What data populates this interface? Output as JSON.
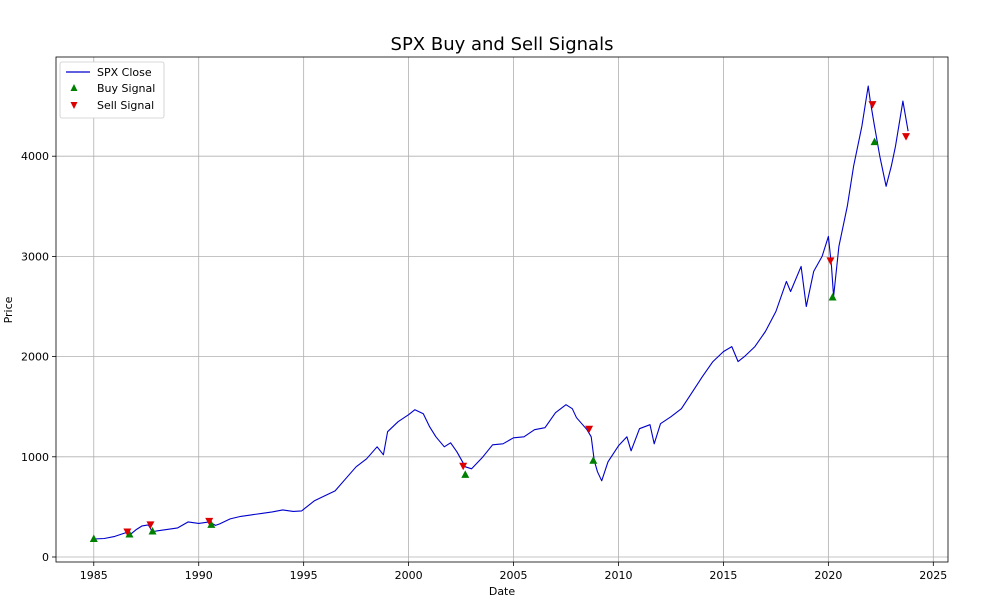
{
  "chart_data": {
    "type": "line",
    "title": "SPX Buy and Sell Signals",
    "xlabel": "Date",
    "ylabel": "Price",
    "xlim": [
      1983.2,
      2025.7
    ],
    "ylim": [
      -50,
      4990
    ],
    "x_ticks": [
      1985,
      1990,
      1995,
      2000,
      2005,
      2010,
      2015,
      2020,
      2025
    ],
    "y_ticks": [
      0,
      1000,
      2000,
      3000,
      4000
    ],
    "grid": true,
    "legend_position": "top-left",
    "series": [
      {
        "name": "SPX Close",
        "kind": "line",
        "color": "#0000cc",
        "x": [
          1985.0,
          1985.5,
          1986.0,
          1986.5,
          1986.8,
          1987.0,
          1987.3,
          1987.6,
          1987.8,
          1988.0,
          1988.5,
          1989.0,
          1989.5,
          1990.0,
          1990.5,
          1990.8,
          1991.0,
          1991.5,
          1992.0,
          1992.5,
          1993.0,
          1993.5,
          1994.0,
          1994.5,
          1994.9,
          1995.5,
          1996.0,
          1996.5,
          1997.0,
          1997.5,
          1998.0,
          1998.5,
          1998.8,
          1999.0,
          1999.5,
          2000.0,
          2000.3,
          2000.7,
          2001.0,
          2001.3,
          2001.7,
          2002.0,
          2002.3,
          2002.7,
          2003.0,
          2003.5,
          2004.0,
          2004.5,
          2005.0,
          2005.5,
          2006.0,
          2006.5,
          2007.0,
          2007.5,
          2007.8,
          2008.0,
          2008.5,
          2008.7,
          2008.85,
          2009.0,
          2009.2,
          2009.5,
          2010.0,
          2010.4,
          2010.6,
          2011.0,
          2011.5,
          2011.7,
          2012.0,
          2012.5,
          2013.0,
          2013.5,
          2014.0,
          2014.5,
          2015.0,
          2015.4,
          2015.7,
          2016.0,
          2016.5,
          2017.0,
          2017.5,
          2018.0,
          2018.2,
          2018.7,
          2018.95,
          2019.3,
          2019.7,
          2020.0,
          2020.15,
          2020.25,
          2020.5,
          2020.9,
          2021.2,
          2021.6,
          2021.9,
          2022.0,
          2022.2,
          2022.45,
          2022.75,
          2023.0,
          2023.2,
          2023.55,
          2023.8
        ],
        "y": [
          180,
          185,
          205,
          240,
          235,
          270,
          310,
          320,
          250,
          260,
          275,
          290,
          350,
          335,
          350,
          315,
          330,
          380,
          405,
          420,
          435,
          450,
          470,
          455,
          460,
          560,
          610,
          660,
          780,
          900,
          980,
          1100,
          1020,
          1250,
          1350,
          1420,
          1470,
          1430,
          1300,
          1200,
          1100,
          1140,
          1050,
          900,
          880,
          990,
          1120,
          1130,
          1190,
          1200,
          1270,
          1290,
          1440,
          1520,
          1480,
          1390,
          1270,
          1200,
          960,
          850,
          760,
          950,
          1110,
          1200,
          1060,
          1280,
          1320,
          1130,
          1330,
          1400,
          1480,
          1640,
          1800,
          1950,
          2050,
          2100,
          1950,
          2000,
          2100,
          2250,
          2450,
          2750,
          2650,
          2900,
          2500,
          2850,
          3000,
          3200,
          2900,
          2600,
          3100,
          3500,
          3900,
          4300,
          4700,
          4550,
          4300,
          4000,
          3700,
          3900,
          4100,
          4550,
          4250
        ]
      },
      {
        "name": "Buy Signal",
        "kind": "marker",
        "marker": "triangle-up",
        "color": "#008000",
        "x": [
          1985.0,
          1986.7,
          1987.8,
          1990.6,
          2002.7,
          2008.8,
          2020.2,
          2022.2
        ],
        "y": [
          180,
          225,
          255,
          320,
          820,
          960,
          2590,
          4140
        ]
      },
      {
        "name": "Sell Signal",
        "kind": "marker",
        "marker": "triangle-down",
        "color": "#dd0000",
        "x": [
          1986.6,
          1987.7,
          1990.5,
          2002.6,
          2008.6,
          2020.1,
          2022.1,
          2023.7
        ],
        "y": [
          255,
          325,
          360,
          910,
          1280,
          2960,
          4520,
          4200
        ]
      }
    ]
  }
}
